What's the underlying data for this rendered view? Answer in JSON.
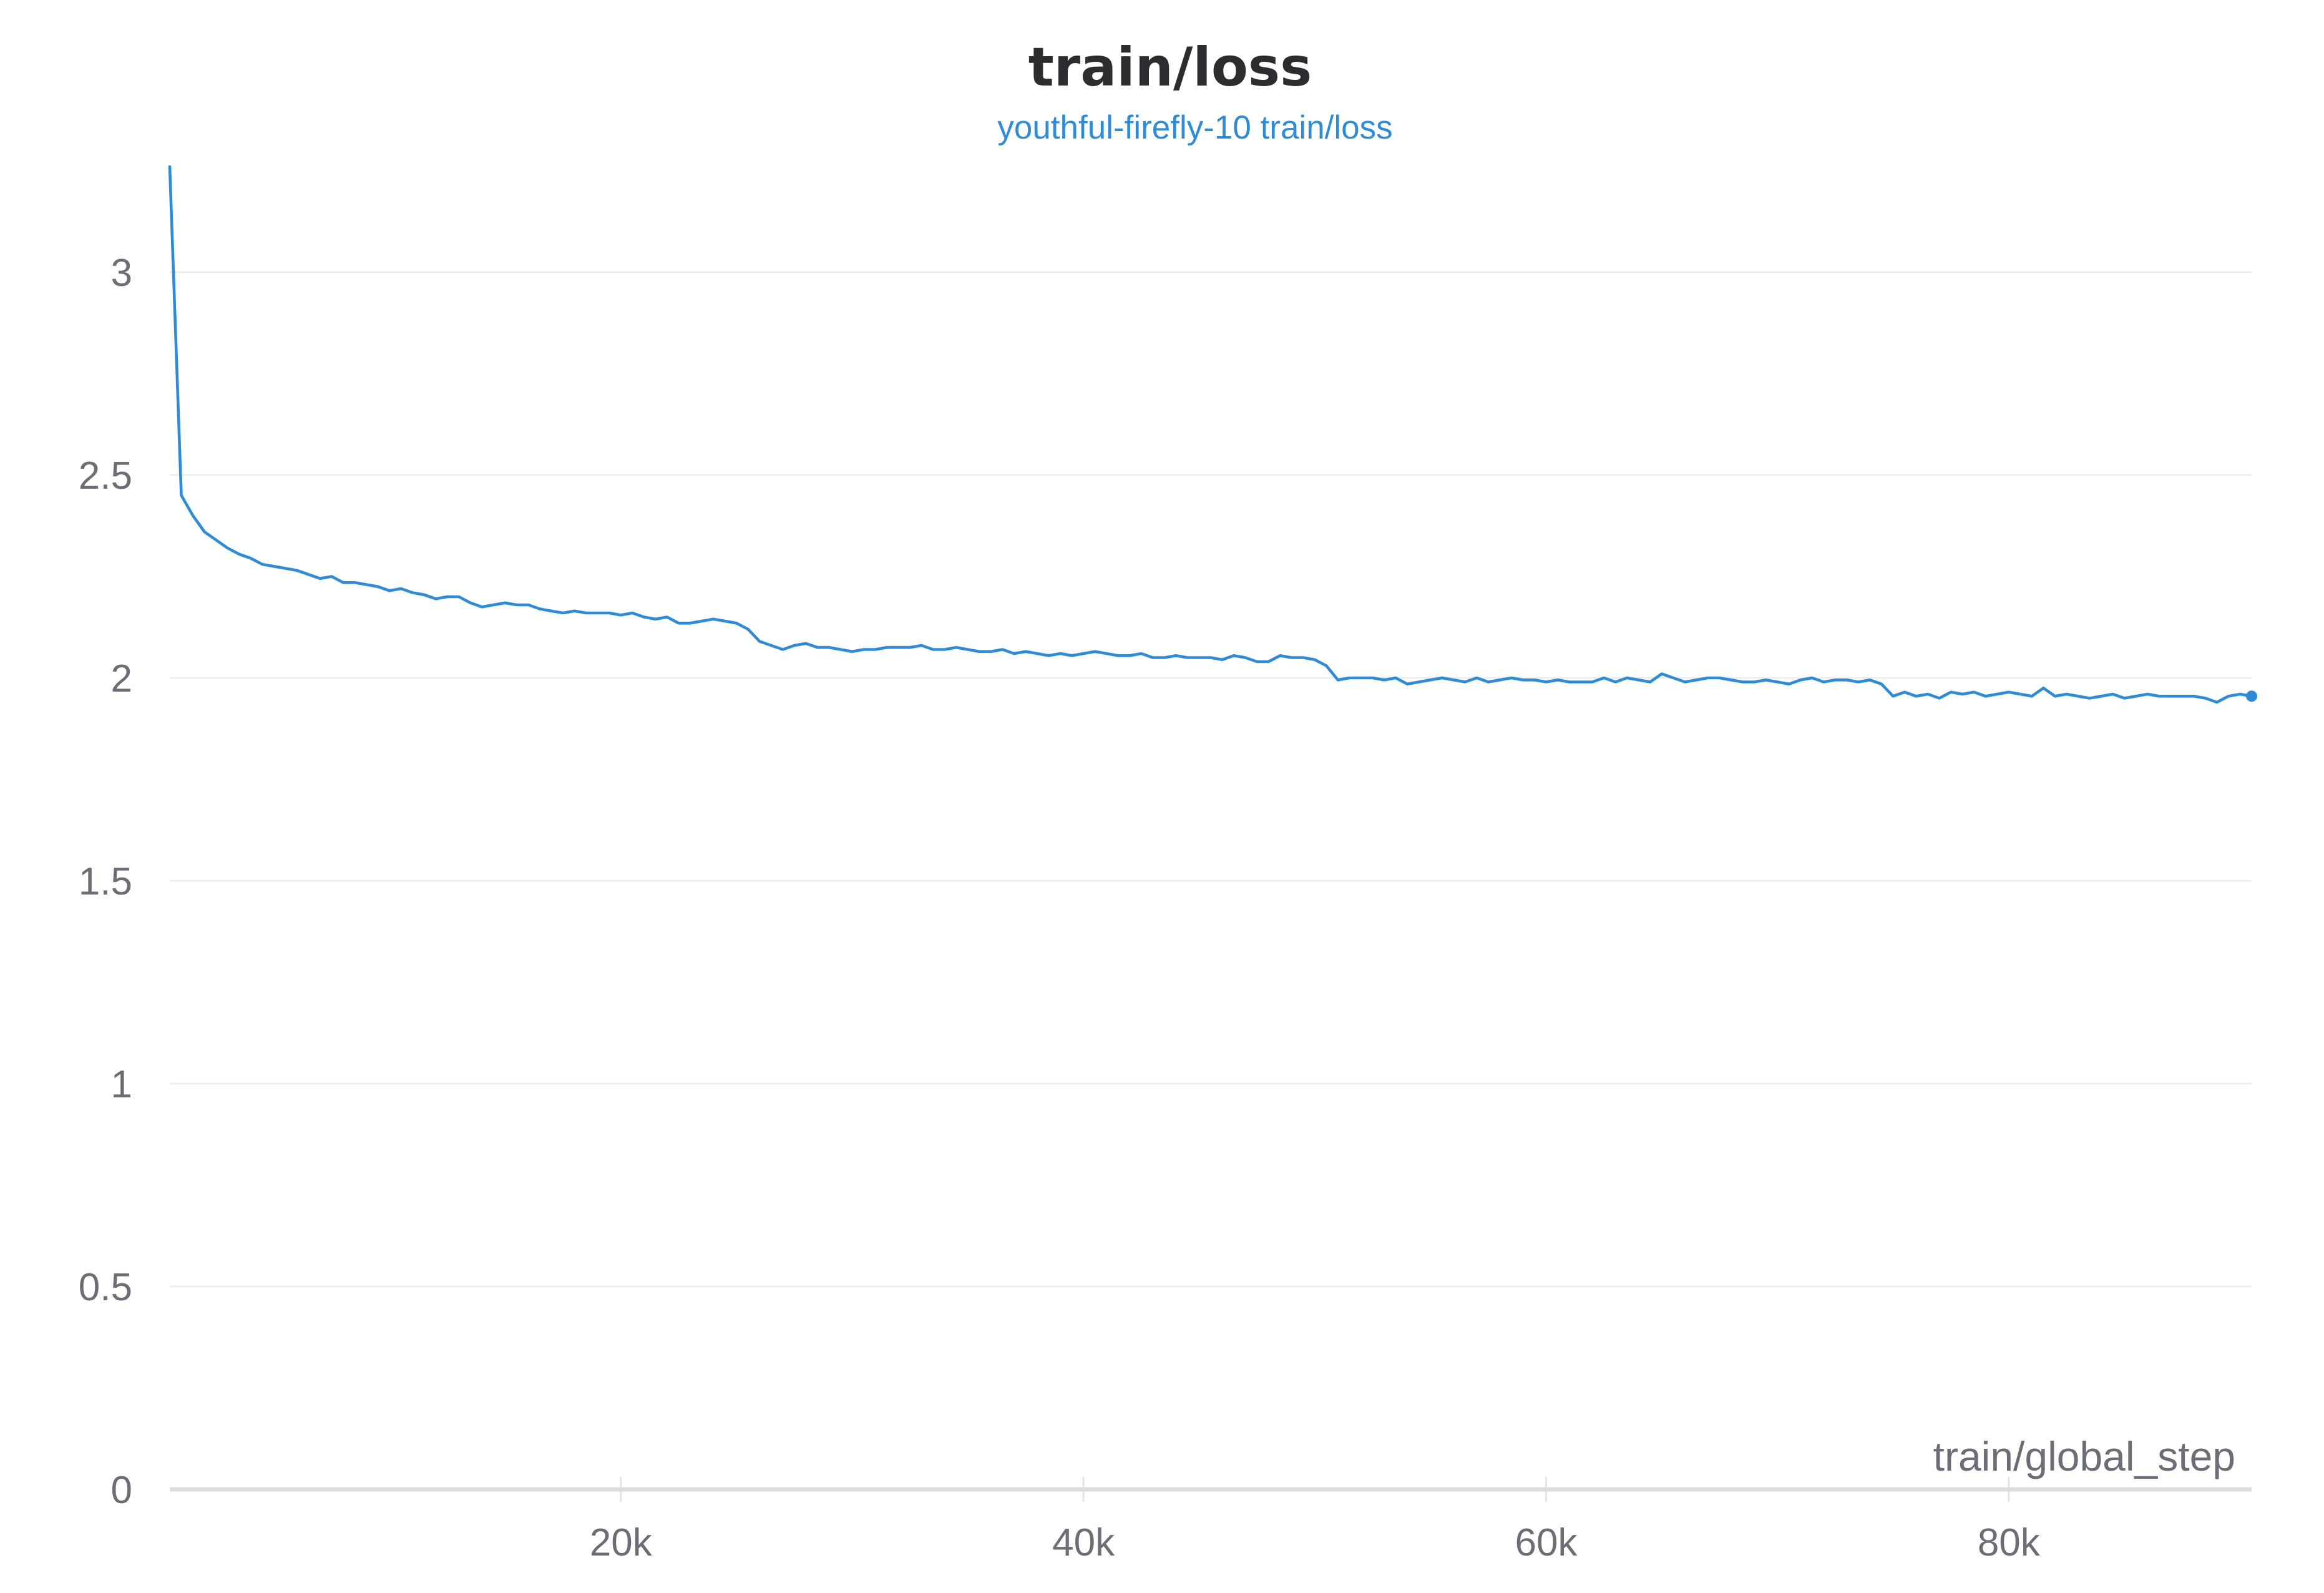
{
  "chart_data": {
    "type": "line",
    "title": "train/loss",
    "subtitle": "youthful-firefly-10 train/loss",
    "xlabel": "train/global_step",
    "ylabel": "",
    "xlim": [
      500,
      90500
    ],
    "ylim": [
      0,
      3.25
    ],
    "grid": true,
    "x_ticks": [
      {
        "value": 20000,
        "label": "20k"
      },
      {
        "value": 40000,
        "label": "40k"
      },
      {
        "value": 60000,
        "label": "60k"
      },
      {
        "value": 80000,
        "label": "80k"
      }
    ],
    "y_ticks": [
      {
        "value": 0,
        "label": "0"
      },
      {
        "value": 0.5,
        "label": "0.5"
      },
      {
        "value": 1,
        "label": "1"
      },
      {
        "value": 1.5,
        "label": "1.5"
      },
      {
        "value": 2,
        "label": "2"
      },
      {
        "value": 2.5,
        "label": "2.5"
      },
      {
        "value": 3,
        "label": "3"
      }
    ],
    "colors": {
      "series": "#2f8bd6"
    },
    "series": [
      {
        "points": [
          [
            500,
            3.26
          ],
          [
            1000,
            2.45
          ],
          [
            1500,
            2.4
          ],
          [
            2000,
            2.36
          ],
          [
            2500,
            2.34
          ],
          [
            3000,
            2.32
          ],
          [
            3500,
            2.305
          ],
          [
            4000,
            2.295
          ],
          [
            4500,
            2.28
          ],
          [
            5000,
            2.275
          ],
          [
            5500,
            2.27
          ],
          [
            6000,
            2.265
          ],
          [
            6500,
            2.255
          ],
          [
            7000,
            2.245
          ],
          [
            7500,
            2.25
          ],
          [
            8000,
            2.235
          ],
          [
            8500,
            2.235
          ],
          [
            9000,
            2.23
          ],
          [
            9500,
            2.225
          ],
          [
            10000,
            2.215
          ],
          [
            10500,
            2.22
          ],
          [
            11000,
            2.21
          ],
          [
            11500,
            2.205
          ],
          [
            12000,
            2.195
          ],
          [
            12500,
            2.2
          ],
          [
            13000,
            2.2
          ],
          [
            13500,
            2.185
          ],
          [
            14000,
            2.175
          ],
          [
            14500,
            2.18
          ],
          [
            15000,
            2.185
          ],
          [
            15500,
            2.18
          ],
          [
            16000,
            2.18
          ],
          [
            16500,
            2.17
          ],
          [
            17000,
            2.165
          ],
          [
            17500,
            2.16
          ],
          [
            18000,
            2.165
          ],
          [
            18500,
            2.16
          ],
          [
            19000,
            2.16
          ],
          [
            19500,
            2.16
          ],
          [
            20000,
            2.155
          ],
          [
            20500,
            2.16
          ],
          [
            21000,
            2.15
          ],
          [
            21500,
            2.145
          ],
          [
            22000,
            2.15
          ],
          [
            22500,
            2.135
          ],
          [
            23000,
            2.135
          ],
          [
            23500,
            2.14
          ],
          [
            24000,
            2.145
          ],
          [
            24500,
            2.14
          ],
          [
            25000,
            2.135
          ],
          [
            25500,
            2.12
          ],
          [
            26000,
            2.09
          ],
          [
            26500,
            2.08
          ],
          [
            27000,
            2.07
          ],
          [
            27500,
            2.08
          ],
          [
            28000,
            2.085
          ],
          [
            28500,
            2.075
          ],
          [
            29000,
            2.075
          ],
          [
            29500,
            2.07
          ],
          [
            30000,
            2.065
          ],
          [
            30500,
            2.07
          ],
          [
            31000,
            2.07
          ],
          [
            31500,
            2.075
          ],
          [
            32000,
            2.075
          ],
          [
            32500,
            2.075
          ],
          [
            33000,
            2.08
          ],
          [
            33500,
            2.07
          ],
          [
            34000,
            2.07
          ],
          [
            34500,
            2.075
          ],
          [
            35000,
            2.07
          ],
          [
            35500,
            2.065
          ],
          [
            36000,
            2.065
          ],
          [
            36500,
            2.07
          ],
          [
            37000,
            2.06
          ],
          [
            37500,
            2.065
          ],
          [
            38000,
            2.06
          ],
          [
            38500,
            2.055
          ],
          [
            39000,
            2.06
          ],
          [
            39500,
            2.055
          ],
          [
            40000,
            2.06
          ],
          [
            40500,
            2.065
          ],
          [
            41000,
            2.06
          ],
          [
            41500,
            2.055
          ],
          [
            42000,
            2.055
          ],
          [
            42500,
            2.06
          ],
          [
            43000,
            2.05
          ],
          [
            43500,
            2.05
          ],
          [
            44000,
            2.055
          ],
          [
            44500,
            2.05
          ],
          [
            45000,
            2.05
          ],
          [
            45500,
            2.05
          ],
          [
            46000,
            2.045
          ],
          [
            46500,
            2.055
          ],
          [
            47000,
            2.05
          ],
          [
            47500,
            2.04
          ],
          [
            48000,
            2.04
          ],
          [
            48500,
            2.055
          ],
          [
            49000,
            2.05
          ],
          [
            49500,
            2.05
          ],
          [
            50000,
            2.045
          ],
          [
            50500,
            2.03
          ],
          [
            51000,
            1.995
          ],
          [
            51500,
            2.0
          ],
          [
            52000,
            2.0
          ],
          [
            52500,
            2.0
          ],
          [
            53000,
            1.995
          ],
          [
            53500,
            2.0
          ],
          [
            54000,
            1.985
          ],
          [
            54500,
            1.99
          ],
          [
            55000,
            1.995
          ],
          [
            55500,
            2.0
          ],
          [
            56000,
            1.995
          ],
          [
            56500,
            1.99
          ],
          [
            57000,
            2.0
          ],
          [
            57500,
            1.99
          ],
          [
            58000,
            1.995
          ],
          [
            58500,
            2.0
          ],
          [
            59000,
            1.995
          ],
          [
            59500,
            1.995
          ],
          [
            60000,
            1.99
          ],
          [
            60500,
            1.995
          ],
          [
            61000,
            1.99
          ],
          [
            61500,
            1.99
          ],
          [
            62000,
            1.99
          ],
          [
            62500,
            2.0
          ],
          [
            63000,
            1.99
          ],
          [
            63500,
            2.0
          ],
          [
            64000,
            1.995
          ],
          [
            64500,
            1.99
          ],
          [
            65000,
            2.01
          ],
          [
            65500,
            2.0
          ],
          [
            66000,
            1.99
          ],
          [
            66500,
            1.995
          ],
          [
            67000,
            2.0
          ],
          [
            67500,
            2.0
          ],
          [
            68000,
            1.995
          ],
          [
            68500,
            1.99
          ],
          [
            69000,
            1.99
          ],
          [
            69500,
            1.995
          ],
          [
            70000,
            1.99
          ],
          [
            70500,
            1.985
          ],
          [
            71000,
            1.995
          ],
          [
            71500,
            2.0
          ],
          [
            72000,
            1.99
          ],
          [
            72500,
            1.995
          ],
          [
            73000,
            1.995
          ],
          [
            73500,
            1.99
          ],
          [
            74000,
            1.995
          ],
          [
            74500,
            1.985
          ],
          [
            75000,
            1.955
          ],
          [
            75500,
            1.965
          ],
          [
            76000,
            1.955
          ],
          [
            76500,
            1.96
          ],
          [
            77000,
            1.95
          ],
          [
            77500,
            1.965
          ],
          [
            78000,
            1.96
          ],
          [
            78500,
            1.965
          ],
          [
            79000,
            1.955
          ],
          [
            79500,
            1.96
          ],
          [
            80000,
            1.965
          ],
          [
            80500,
            1.96
          ],
          [
            81000,
            1.955
          ],
          [
            81500,
            1.975
          ],
          [
            82000,
            1.955
          ],
          [
            82500,
            1.96
          ],
          [
            83000,
            1.955
          ],
          [
            83500,
            1.95
          ],
          [
            84000,
            1.955
          ],
          [
            84500,
            1.96
          ],
          [
            85000,
            1.95
          ],
          [
            85500,
            1.955
          ],
          [
            86000,
            1.96
          ],
          [
            86500,
            1.955
          ],
          [
            87000,
            1.955
          ],
          [
            87500,
            1.955
          ],
          [
            88000,
            1.955
          ],
          [
            88500,
            1.95
          ],
          [
            89000,
            1.94
          ],
          [
            89500,
            1.955
          ],
          [
            90000,
            1.96
          ],
          [
            90500,
            1.955
          ]
        ]
      }
    ]
  }
}
